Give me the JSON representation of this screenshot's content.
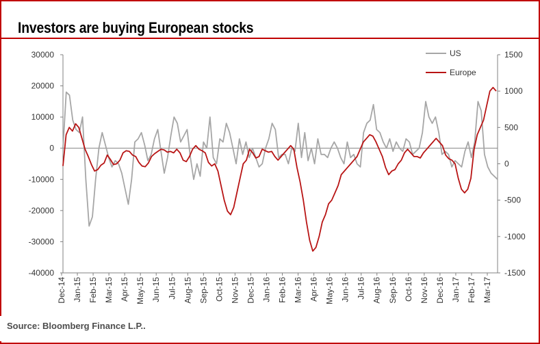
{
  "title": "Investors are buying European stocks",
  "source": "Source: Bloomberg Finance L.P..",
  "chart_data": {
    "type": "line",
    "title": "Investors are buying European stocks",
    "y_left": {
      "ticks": [
        "30000",
        "20000",
        "10000",
        "0",
        "-10000",
        "-20000",
        "-30000",
        "-40000"
      ],
      "range": [
        -40000,
        30000
      ]
    },
    "y_right": {
      "ticks": [
        "1500",
        "1000",
        "500",
        "0",
        "-500",
        "-1000",
        "-1500"
      ],
      "range": [
        -1500,
        1500
      ]
    },
    "x_ticks": [
      "Dec-14",
      "Jan-15",
      "Feb-15",
      "Mar-15",
      "Apr-15",
      "May-15",
      "Jun-15",
      "Jul-15",
      "Aug-15",
      "Sep-15",
      "Oct-15",
      "Nov-15",
      "Dec-15",
      "Jan-16",
      "Feb-16",
      "Mar-16",
      "Apr-16",
      "May-16",
      "Jun-16",
      "Jul-16",
      "Aug-16",
      "Sep-16",
      "Oct-16",
      "Nov-16",
      "Dec-16",
      "Jan-17",
      "Feb-17",
      "Mar-17"
    ],
    "legend": [
      "US",
      "Europe"
    ],
    "colors": {
      "us": "#a6a6a6",
      "europe": "#b81414",
      "axis": "#808080"
    },
    "series": [
      {
        "name": "US",
        "axis": "left",
        "values": [
          0,
          18000,
          17000,
          9000,
          6000,
          5000,
          10000,
          -10000,
          -25000,
          -22000,
          -10000,
          0,
          5000,
          1000,
          -3000,
          -6000,
          -4000,
          -5000,
          -8000,
          -13000,
          -18000,
          -10000,
          2000,
          3000,
          5000,
          1000,
          -4000,
          -2000,
          3000,
          6000,
          -1000,
          -8000,
          -3000,
          4000,
          10000,
          8000,
          2000,
          4000,
          6000,
          -3000,
          -10000,
          -5000,
          -9000,
          2000,
          0,
          10000,
          -3000,
          -5000,
          3000,
          2000,
          8000,
          5000,
          0,
          -5000,
          3000,
          -2000,
          2000,
          -3000,
          0,
          -3000,
          -6000,
          -5000,
          0,
          3000,
          8000,
          6000,
          -3000,
          -2000,
          -2000,
          -5000,
          0,
          -1000,
          8000,
          -3000,
          5000,
          -4000,
          0,
          -5000,
          3000,
          -2000,
          -2000,
          -3000,
          0,
          2000,
          0,
          -3000,
          -5000,
          2000,
          -3000,
          -2000,
          -5000,
          -6000,
          5000,
          8000,
          9000,
          14000,
          6000,
          5000,
          2000,
          0,
          3000,
          -1000,
          2000,
          0,
          -1000,
          3000,
          2000,
          -2000,
          -1000,
          0,
          5000,
          15000,
          10000,
          8000,
          10000,
          5000,
          -2000,
          -1000,
          -2000,
          -6000,
          -4000,
          -5000,
          -6000,
          -1000,
          2000,
          -3000,
          2000,
          15000,
          12000,
          -2000,
          -6000,
          -8000,
          -9000
        ],
        "tail_values": [
          -10000
        ]
      },
      {
        "name": "Europe",
        "axis": "right",
        "values": [
          -30,
          400,
          500,
          450,
          550,
          500,
          350,
          200,
          100,
          -10,
          -100,
          -80,
          -20,
          10,
          120,
          60,
          -10,
          0,
          50,
          150,
          180,
          170,
          120,
          100,
          20,
          -30,
          -40,
          10,
          100,
          140,
          170,
          200,
          190,
          160,
          170,
          150,
          200,
          150,
          50,
          30,
          100,
          200,
          250,
          200,
          180,
          150,
          20,
          -30,
          0,
          -100,
          -300,
          -500,
          -650,
          -700,
          -600,
          -400,
          -200,
          0,
          50,
          200,
          150,
          80,
          100,
          200,
          180,
          160,
          170,
          100,
          50,
          100,
          150,
          200,
          250,
          200,
          -50,
          -250,
          -500,
          -800,
          -1050,
          -1200,
          -1150,
          -1000,
          -800,
          -700,
          -550,
          -500,
          -400,
          -300,
          -150,
          -100,
          -50,
          0,
          50,
          100,
          200,
          300,
          350,
          400,
          380,
          300,
          200,
          100,
          -50,
          -150,
          -100,
          -80,
          0,
          50,
          150,
          200,
          150,
          100,
          100,
          80,
          150,
          200,
          250,
          300,
          350,
          300,
          250,
          120,
          70,
          50,
          0,
          -200,
          -350,
          -400,
          -350,
          -200,
          200,
          400,
          500,
          600,
          800,
          1000,
          1050,
          1000
        ],
        "tail_values": []
      }
    ]
  }
}
